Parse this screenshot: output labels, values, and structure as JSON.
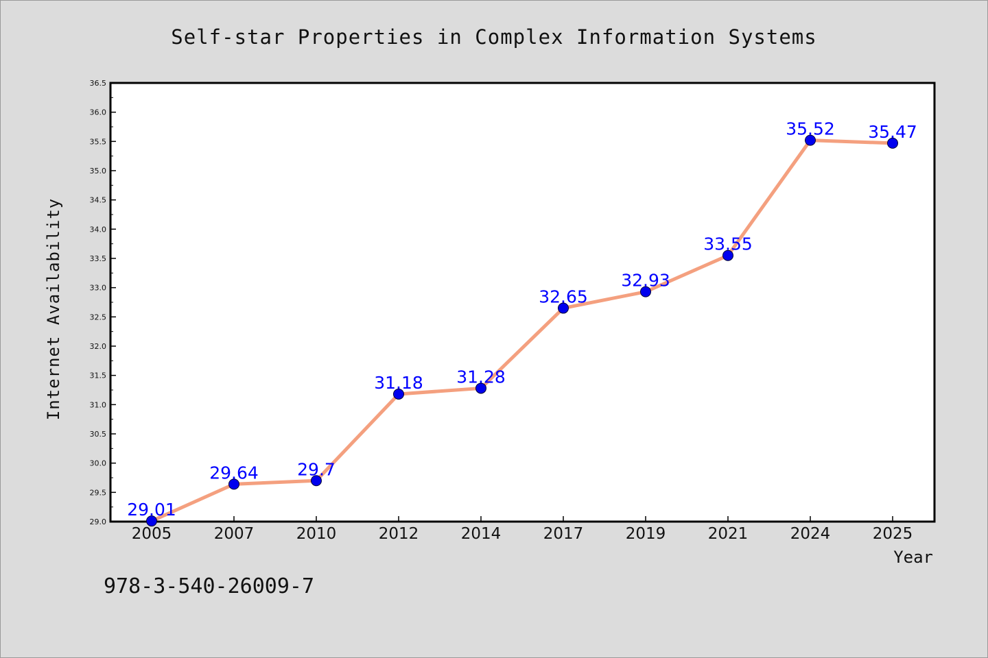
{
  "chart_data": {
    "type": "line",
    "title": "Self-star Properties in Complex Information Systems",
    "xlabel": "Year",
    "ylabel": "Internet Availability",
    "categories": [
      "2005",
      "2007",
      "2010",
      "2012",
      "2014",
      "2017",
      "2019",
      "2021",
      "2024",
      "2025"
    ],
    "series": [
      {
        "values": [
          29.01,
          29.64,
          29.7,
          31.18,
          31.28,
          32.65,
          32.93,
          33.55,
          35.52,
          35.47
        ],
        "labels": [
          "29.01",
          "29.64",
          "29.7",
          "31.18",
          "31.28",
          "32.65",
          "32.93",
          "33.55",
          "35.52",
          "35.47"
        ],
        "line_color": "#f4a07f",
        "marker_color": "#0000ee"
      }
    ],
    "ylim": [
      29.0,
      36.5
    ],
    "yticks": [
      "29.0",
      "29.5",
      "30.0",
      "30.5",
      "31.0",
      "31.5",
      "32.0",
      "32.5",
      "33.0",
      "33.5",
      "34.0",
      "34.5",
      "35.0",
      "35.5",
      "36.0",
      "36.5"
    ],
    "grid": false,
    "legend": "none",
    "label_color": "#0000ff"
  },
  "footer_text": "978-3-540-26009-7"
}
